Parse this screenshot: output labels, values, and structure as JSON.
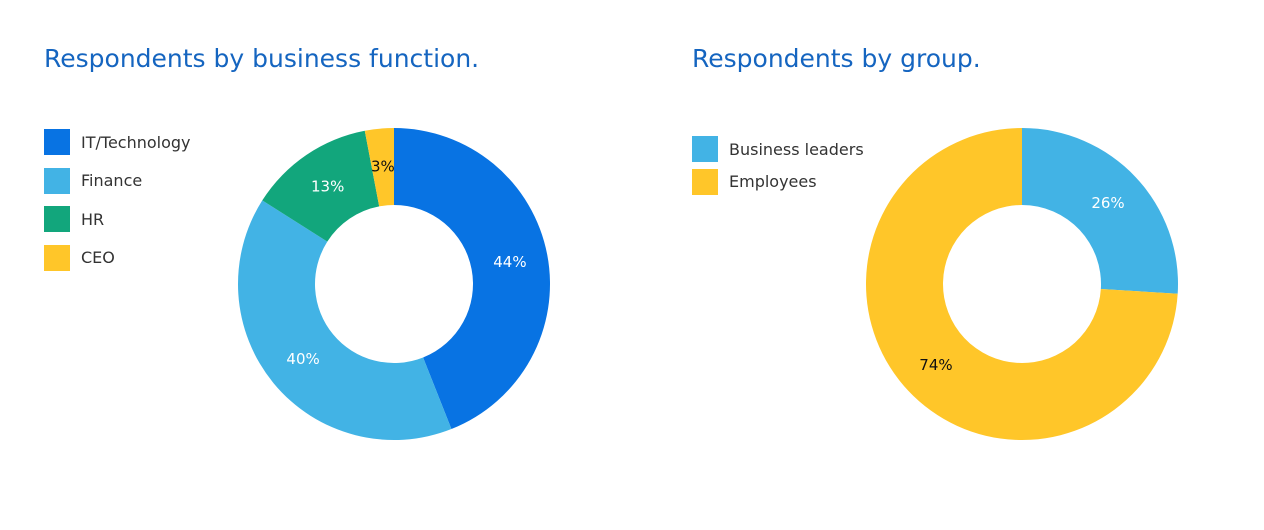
{
  "chart_data": [
    {
      "type": "pie",
      "title": "Respondents by business function.",
      "categories": [
        "IT/Technology",
        "Finance",
        "HR",
        "CEO"
      ],
      "values": [
        44,
        40,
        13,
        3
      ],
      "data_labels": [
        "44%",
        "40%",
        "13%",
        "3%"
      ],
      "colors": [
        "#0873e3",
        "#42b3e5",
        "#12a67c",
        "#ffc629"
      ],
      "label_colors": [
        "#ffffff",
        "#ffffff",
        "#ffffff",
        "#111111"
      ],
      "donut": true,
      "legend_position": "left"
    },
    {
      "type": "pie",
      "title": "Respondents by group.",
      "categories": [
        "Business leaders",
        "Employees"
      ],
      "values": [
        26,
        74
      ],
      "data_labels": [
        "26%",
        "74%"
      ],
      "colors": [
        "#42b3e5",
        "#ffc629"
      ],
      "label_colors": [
        "#ffffff",
        "#111111"
      ],
      "donut": true,
      "legend_position": "top-left"
    }
  ]
}
